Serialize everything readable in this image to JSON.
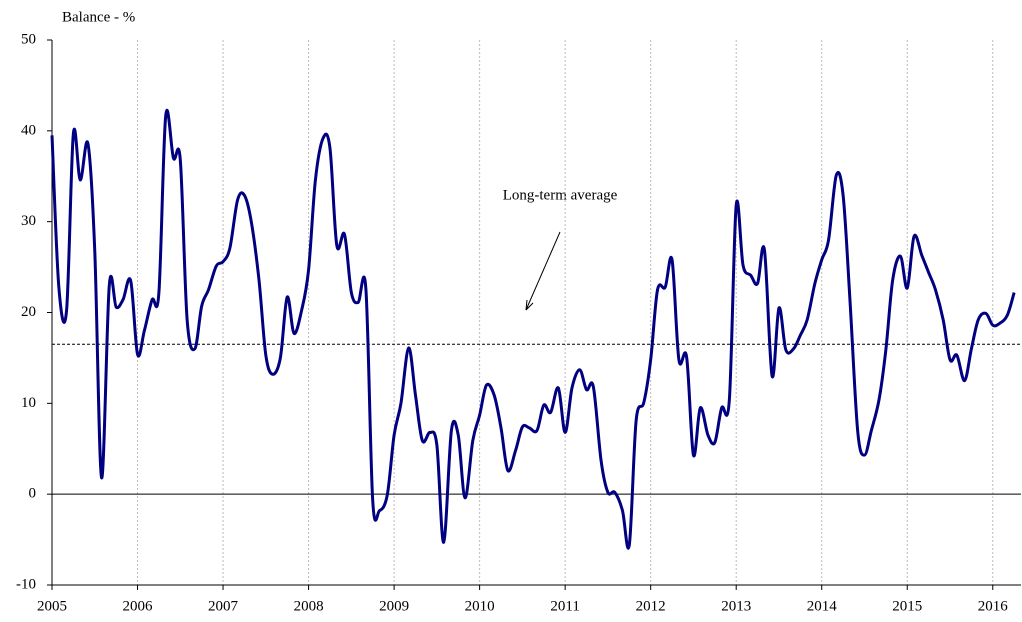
{
  "chart_data": {
    "type": "line",
    "y_label": "Balance - %",
    "annotation": "Long-term average",
    "average": 16.5,
    "xlim": [
      2005,
      2016.33
    ],
    "xticks": [
      2005,
      2006,
      2007,
      2008,
      2009,
      2010,
      2011,
      2012,
      2013,
      2014,
      2015,
      2016
    ],
    "ylim": [
      -10,
      50
    ],
    "yticks": [
      -10,
      0,
      10,
      20,
      30,
      40,
      50
    ],
    "grid": true,
    "x": [
      2005,
      2005.08,
      2005.17,
      2005.25,
      2005.33,
      2005.42,
      2005.5,
      2005.58,
      2005.67,
      2005.75,
      2005.83,
      2005.92,
      2006,
      2006.08,
      2006.17,
      2006.25,
      2006.33,
      2006.42,
      2006.5,
      2006.58,
      2006.67,
      2006.75,
      2006.83,
      2006.92,
      2007,
      2007.08,
      2007.17,
      2007.25,
      2007.33,
      2007.42,
      2007.5,
      2007.58,
      2007.67,
      2007.75,
      2007.83,
      2007.92,
      2008,
      2008.08,
      2008.17,
      2008.25,
      2008.33,
      2008.42,
      2008.5,
      2008.58,
      2008.67,
      2008.75,
      2008.83,
      2008.92,
      2009,
      2009.08,
      2009.17,
      2009.25,
      2009.33,
      2009.42,
      2009.5,
      2009.58,
      2009.67,
      2009.75,
      2009.83,
      2009.92,
      2010,
      2010.08,
      2010.17,
      2010.25,
      2010.33,
      2010.42,
      2010.5,
      2010.58,
      2010.67,
      2010.75,
      2010.83,
      2010.92,
      2011,
      2011.08,
      2011.17,
      2011.25,
      2011.33,
      2011.42,
      2011.5,
      2011.58,
      2011.67,
      2011.75,
      2011.83,
      2011.92,
      2012,
      2012.08,
      2012.17,
      2012.25,
      2012.33,
      2012.42,
      2012.5,
      2012.58,
      2012.67,
      2012.75,
      2012.83,
      2012.92,
      2013,
      2013.08,
      2013.17,
      2013.25,
      2013.33,
      2013.42,
      2013.5,
      2013.58,
      2013.67,
      2013.75,
      2013.83,
      2013.92,
      2014,
      2014.08,
      2014.17,
      2014.25,
      2014.33,
      2014.42,
      2014.5,
      2014.58,
      2014.67,
      2014.75,
      2014.83,
      2014.92,
      2015,
      2015.08,
      2015.17,
      2015.25,
      2015.33,
      2015.42,
      2015.5,
      2015.58,
      2015.67,
      2015.75,
      2015.83,
      2015.92,
      2016,
      2016.08,
      2016.17,
      2016.25
    ],
    "series": [
      {
        "color": "#000080",
        "values": [
          39.5,
          22.8,
          20.2,
          39.7,
          34.6,
          38.6,
          26.8,
          1.8,
          23,
          20.6,
          21.4,
          23.5,
          15.4,
          18,
          21.4,
          22.2,
          41.7,
          37,
          36.8,
          19.2,
          16,
          20.7,
          22.5,
          25.1,
          25.6,
          27.1,
          32.4,
          32.9,
          30,
          23.6,
          15.3,
          13.2,
          15,
          21.7,
          17.7,
          20.3,
          24.7,
          34.6,
          39.2,
          38.1,
          27.4,
          28.6,
          22.2,
          21.1,
          22.6,
          -0.7,
          -1.8,
          -0.1,
          6.5,
          10,
          16.1,
          10.9,
          5.9,
          6.8,
          5.4,
          -5.3,
          7,
          6.5,
          -0.4,
          5.9,
          8.7,
          12,
          10.9,
          7.3,
          2.6,
          4.8,
          7.4,
          7.3,
          7,
          9.8,
          9,
          11.7,
          6.8,
          11.7,
          13.7,
          11.5,
          11.8,
          3.7,
          0.2,
          0.2,
          -1.8,
          -5.6,
          8.1,
          10.1,
          14.8,
          22.5,
          22.8,
          25.8,
          14.8,
          15.1,
          4.3,
          9.5,
          6.5,
          5.7,
          9.5,
          10.4,
          31.8,
          25.2,
          24.1,
          23.2,
          26.9,
          13,
          20.5,
          15.9,
          16,
          17.5,
          19.2,
          23.2,
          25.8,
          28,
          35.1,
          32.9,
          21.4,
          7,
          4.3,
          7,
          10.4,
          15.9,
          23.6,
          26.2,
          22.7,
          28.4,
          26.3,
          24.4,
          22.5,
          19.2,
          14.8,
          15.3,
          12.5,
          16,
          19.2,
          19.9,
          18.6,
          18.8,
          19.7,
          22.2
        ]
      }
    ]
  }
}
